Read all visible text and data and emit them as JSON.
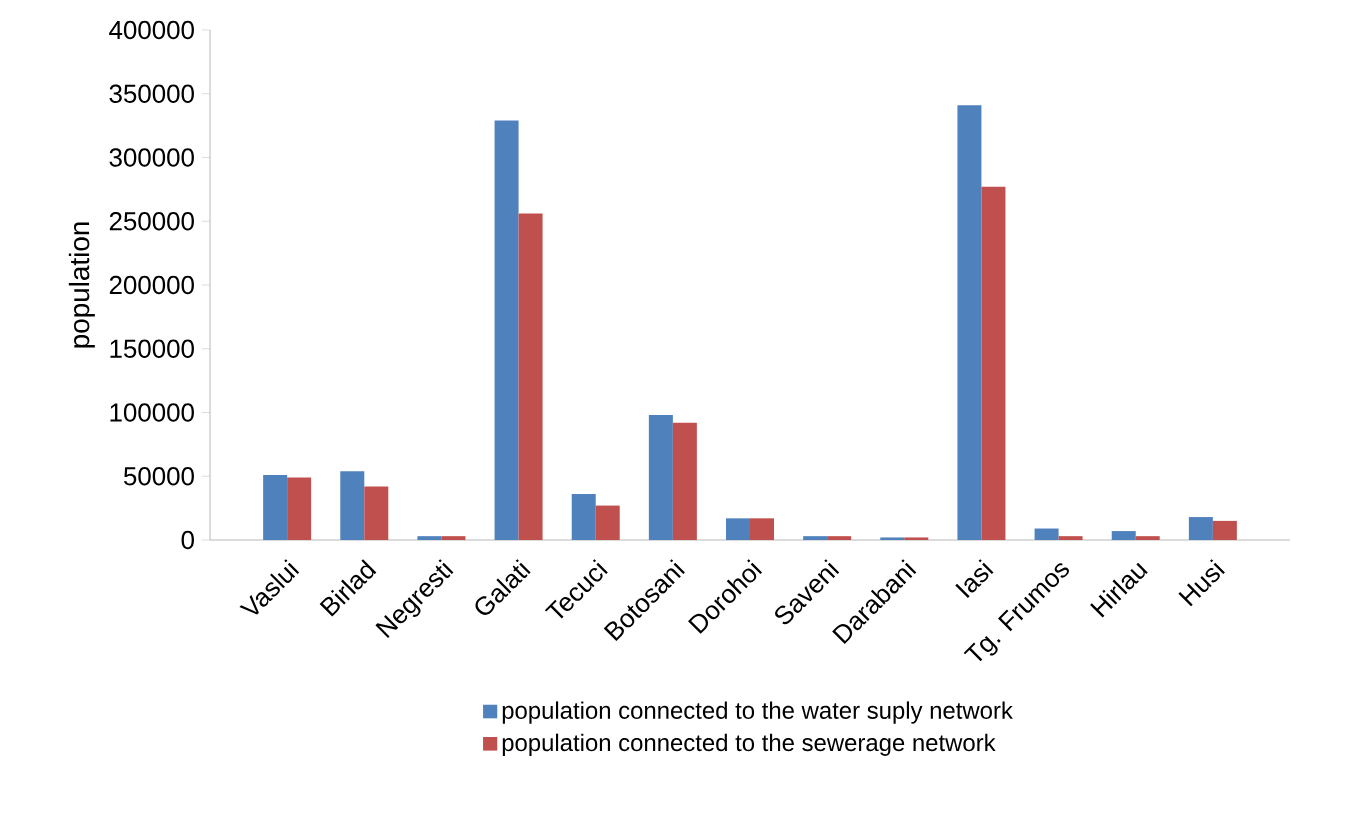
{
  "chart_data": {
    "type": "bar",
    "ylabel": "population",
    "categories": [
      "Vaslui",
      "Birlad",
      "Negresti",
      "Galati",
      "Tecuci",
      "Botosani",
      "Dorohoi",
      "Saveni",
      "Darabani",
      "Iasi",
      "Tg. Frumos",
      "Hirlau",
      "Husi"
    ],
    "series": [
      {
        "name": "population connected to the water suply network",
        "color": "#4f81bd",
        "values": [
          51000,
          54000,
          3000,
          329000,
          36000,
          98000,
          17000,
          3000,
          2000,
          341000,
          9000,
          7000,
          18000
        ]
      },
      {
        "name": "population connected to the sewerage network",
        "color": "#c0504d",
        "values": [
          49000,
          42000,
          3000,
          256000,
          27000,
          92000,
          17000,
          3000,
          2000,
          277000,
          3000,
          3000,
          15000
        ]
      }
    ],
    "ylim": [
      0,
      400000
    ],
    "yticks": [
      0,
      50000,
      100000,
      150000,
      200000,
      250000,
      300000,
      350000,
      400000
    ],
    "grid": false,
    "legend": "bottom"
  }
}
